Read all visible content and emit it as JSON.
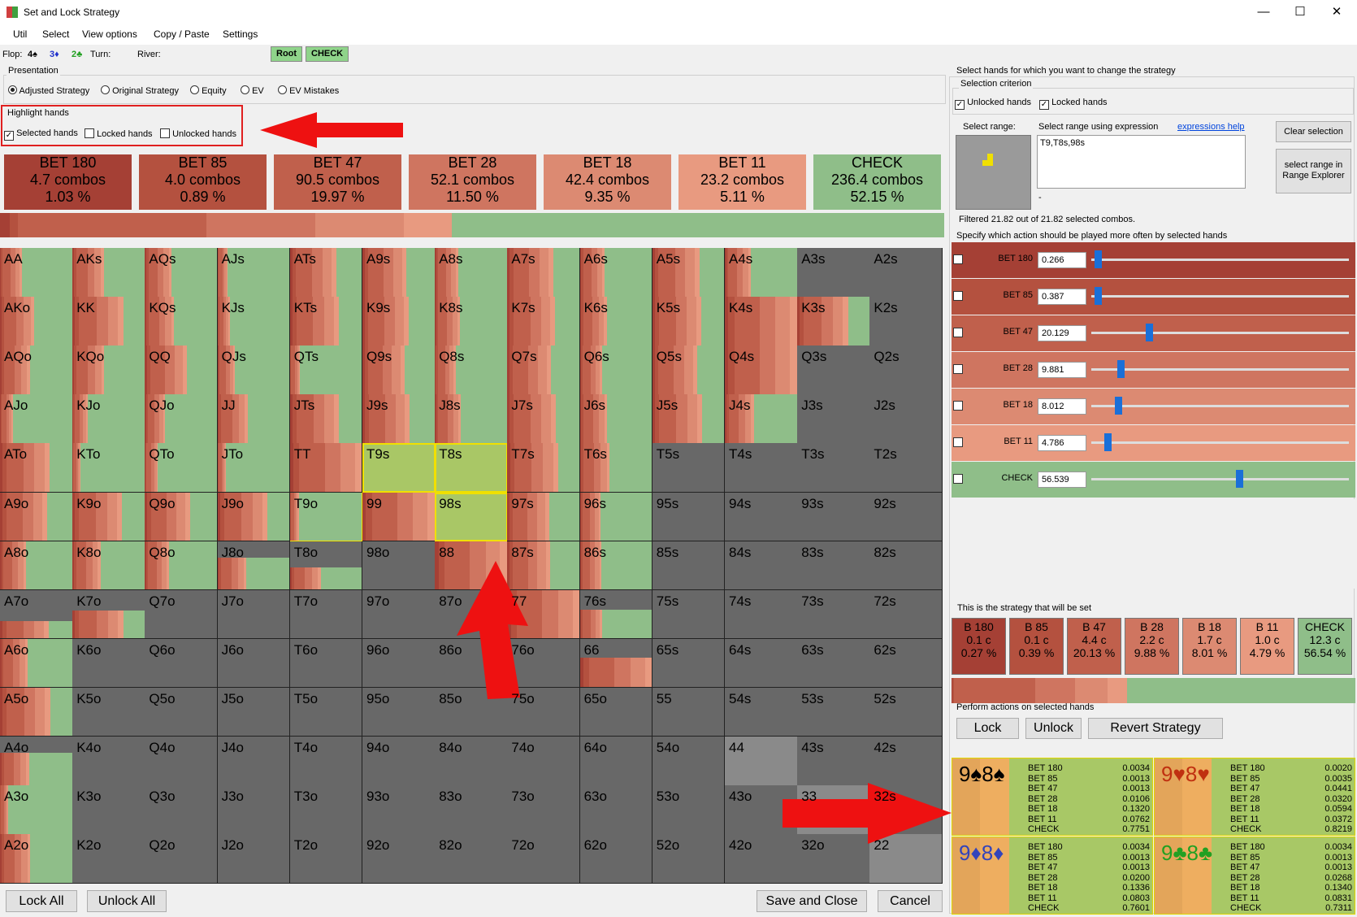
{
  "window": {
    "title": "Set and Lock Strategy",
    "min": "—",
    "max": "☐",
    "close": "✕"
  },
  "menu": [
    "Util",
    "Select",
    "View options",
    "Copy / Paste",
    "Settings"
  ],
  "board": {
    "flop_label": "Flop:",
    "cards": [
      {
        "t": "4♠",
        "c": "#000"
      },
      {
        "t": "3♦",
        "c": "#2233cc"
      },
      {
        "t": "2♣",
        "c": "#22a022"
      }
    ],
    "turn_label": "Turn:",
    "river_label": "River:"
  },
  "path": {
    "root": "Root",
    "check": "CHECK"
  },
  "presentation": {
    "label": "Presentation",
    "options": [
      "Adjusted Strategy",
      "Original Strategy",
      "Equity",
      "EV",
      "EV Mistakes"
    ]
  },
  "highlight": {
    "label": "Highlight hands",
    "options": [
      "Selected hands",
      "Locked hands",
      "Unlocked hands"
    ]
  },
  "actions": [
    {
      "name": "BET 180",
      "combos": "4.7 combos",
      "pct": "1.03 %",
      "color": "#a54035"
    },
    {
      "name": "BET 85",
      "combos": "4.0 combos",
      "pct": "0.89 %",
      "color": "#b4513f"
    },
    {
      "name": "BET 47",
      "combos": "90.5 combos",
      "pct": "19.97 %",
      "color": "#c0604c"
    },
    {
      "name": "BET 28",
      "combos": "52.1 combos",
      "pct": "11.50 %",
      "color": "#cf7560"
    },
    {
      "name": "BET 18",
      "combos": "42.4 combos",
      "pct": "9.35 %",
      "color": "#dc8a72"
    },
    {
      "name": "BET 11",
      "combos": "23.2 combos",
      "pct": "5.11 %",
      "color": "#e89a80"
    },
    {
      "name": "CHECK",
      "combos": "236.4 combos",
      "pct": "52.15 %",
      "color": "#8fbe89"
    }
  ],
  "strip": [
    1.03,
    0.89,
    19.97,
    11.5,
    9.35,
    5.11,
    52.15
  ],
  "grid": [
    [
      "AA",
      "AKs",
      "AQs",
      "AJs",
      "ATs",
      "A9s",
      "A8s",
      "A7s",
      "A6s",
      "A5s",
      "A4s",
      "A3s",
      "A2s"
    ],
    [
      "AKo",
      "KK",
      "KQs",
      "KJs",
      "KTs",
      "K9s",
      "K8s",
      "K7s",
      "K6s",
      "K5s",
      "K4s",
      "K3s",
      "K2s"
    ],
    [
      "AQo",
      "KQo",
      "QQ",
      "QJs",
      "QTs",
      "Q9s",
      "Q8s",
      "Q7s",
      "Q6s",
      "Q5s",
      "Q4s",
      "Q3s",
      "Q2s"
    ],
    [
      "AJo",
      "KJo",
      "QJo",
      "JJ",
      "JTs",
      "J9s",
      "J8s",
      "J7s",
      "J6s",
      "J5s",
      "J4s",
      "J3s",
      "J2s"
    ],
    [
      "ATo",
      "KTo",
      "QTo",
      "JTo",
      "TT",
      "T9s",
      "T8s",
      "T7s",
      "T6s",
      "T5s",
      "T4s",
      "T3s",
      "T2s"
    ],
    [
      "A9o",
      "K9o",
      "Q9o",
      "J9o",
      "T9o",
      "99",
      "98s",
      "97s",
      "96s",
      "95s",
      "94s",
      "93s",
      "92s"
    ],
    [
      "A8o",
      "K8o",
      "Q8o",
      "J8o",
      "T8o",
      "98o",
      "88",
      "87s",
      "86s",
      "85s",
      "84s",
      "83s",
      "82s"
    ],
    [
      "A7o",
      "K7o",
      "Q7o",
      "J7o",
      "T7o",
      "97o",
      "87o",
      "77",
      "76s",
      "75s",
      "74s",
      "73s",
      "72s"
    ],
    [
      "A6o",
      "K6o",
      "Q6o",
      "J6o",
      "T6o",
      "96o",
      "86o",
      "76o",
      "66",
      "65s",
      "64s",
      "63s",
      "62s"
    ],
    [
      "A5o",
      "K5o",
      "Q5o",
      "J5o",
      "T5o",
      "95o",
      "85o",
      "75o",
      "65o",
      "55",
      "54s",
      "53s",
      "52s"
    ],
    [
      "A4o",
      "K4o",
      "Q4o",
      "J4o",
      "T4o",
      "94o",
      "84o",
      "74o",
      "64o",
      "54o",
      "44",
      "43s",
      "42s"
    ],
    [
      "A3o",
      "K3o",
      "Q3o",
      "J3o",
      "T3o",
      "93o",
      "83o",
      "73o",
      "63o",
      "53o",
      "43o",
      "33",
      "32s"
    ],
    [
      "A2o",
      "K2o",
      "Q2o",
      "J2o",
      "T2o",
      "92o",
      "82o",
      "72o",
      "62o",
      "52o",
      "42o",
      "32o",
      "22"
    ]
  ],
  "bottom": {
    "lock_all": "Lock All",
    "unlock_all": "Unlock All",
    "save": "Save and Close",
    "cancel": "Cancel"
  },
  "right": {
    "header": "Select hands for which you want to change the strategy",
    "criterion_label": "Selection criterion",
    "unlocked": "Unlocked hands",
    "locked": "Locked hands",
    "select_range": "Select range:",
    "expr_label": "Select range using expression",
    "expr_help": "expressions help",
    "expr_value": "T9,T8s,98s",
    "dash": "-",
    "clear": "Clear selection",
    "explorer": "select range in Range Explorer",
    "filtered": "Filtered 21.82 out of 21.82 selected combos.",
    "specify": "Specify which action should be played more often by selected hands",
    "sliders": [
      {
        "name": "BET 180",
        "value": "0.266",
        "pos": 0.012,
        "color": "#a54035"
      },
      {
        "name": "BET 85",
        "value": "0.387",
        "pos": 0.012,
        "color": "#b4513f"
      },
      {
        "name": "BET 47",
        "value": "20.129",
        "pos": 0.21,
        "color": "#c0604c"
      },
      {
        "name": "BET 28",
        "value": "9.881",
        "pos": 0.1,
        "color": "#cf7560"
      },
      {
        "name": "BET 18",
        "value": "8.012",
        "pos": 0.09,
        "color": "#dc8a72"
      },
      {
        "name": "BET 11",
        "value": "4.786",
        "pos": 0.05,
        "color": "#e89a80"
      },
      {
        "name": "CHECK",
        "value": "56.539",
        "pos": 0.56,
        "color": "#8fbe89"
      }
    ],
    "strategy_label": "This is the strategy that will be set",
    "strategy": [
      {
        "a": "B 180",
        "c": "0.1 c",
        "p": "0.27 %",
        "color": "#a54035"
      },
      {
        "a": "B 85",
        "c": "0.1 c",
        "p": "0.39 %",
        "color": "#b4513f"
      },
      {
        "a": "B 47",
        "c": "4.4 c",
        "p": "20.13 %",
        "color": "#c0604c"
      },
      {
        "a": "B 28",
        "c": "2.2 c",
        "p": "9.88 %",
        "color": "#cf7560"
      },
      {
        "a": "B 18",
        "c": "1.7 c",
        "p": "8.01 %",
        "color": "#dc8a72"
      },
      {
        "a": "B 11",
        "c": "1.0 c",
        "p": "4.79 %",
        "color": "#e89a80"
      },
      {
        "a": "CHECK",
        "c": "12.3 c",
        "p": "56.54 %",
        "color": "#8fbe89"
      }
    ],
    "perform_label": "Perform actions on selected hands",
    "lock": "Lock",
    "unlock": "Unlock",
    "revert": "Revert Strategy",
    "combos": [
      {
        "r1": "9",
        "s1": "♠",
        "r2": "8",
        "s2": "♠",
        "color": "#000",
        "vals": [
          "0.0034",
          "0.0013",
          "0.0013",
          "0.0106",
          "0.1320",
          "0.0762",
          "0.7751"
        ]
      },
      {
        "r1": "9",
        "s1": "♥",
        "r2": "8",
        "s2": "♥",
        "color": "#c03010",
        "vals": [
          "0.0020",
          "0.0035",
          "0.0441",
          "0.0320",
          "0.0594",
          "0.0372",
          "0.8219"
        ]
      },
      {
        "r1": "9",
        "s1": "♦",
        "r2": "8",
        "s2": "♦",
        "color": "#3344bb",
        "vals": [
          "0.0034",
          "0.0013",
          "0.0013",
          "0.0200",
          "0.1336",
          "0.0803",
          "0.7601"
        ]
      },
      {
        "r1": "9",
        "s1": "♣",
        "r2": "8",
        "s2": "♣",
        "color": "#22a022",
        "vals": [
          "0.0034",
          "0.0013",
          "0.0013",
          "0.0268",
          "0.1340",
          "0.0831",
          "0.7311"
        ]
      }
    ],
    "combo_actions": [
      "BET 180",
      "BET 85",
      "BET 47",
      "BET 28",
      "BET 18",
      "BET 11",
      "CHECK"
    ]
  }
}
